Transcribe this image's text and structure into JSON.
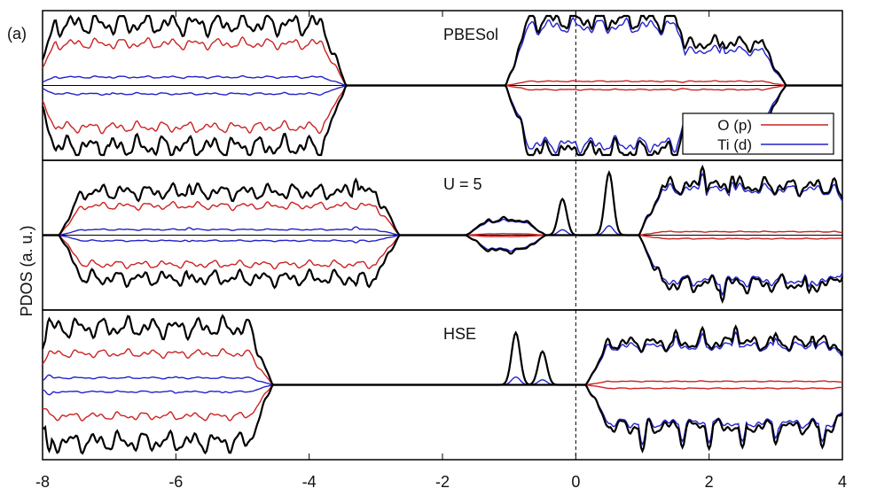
{
  "figure": {
    "panel_label": "(a)",
    "ylabel": "PDOS (a. u.)"
  },
  "chart_data": {
    "type": "line",
    "xlim": [
      -8,
      4
    ],
    "x_ticks": [
      -8,
      -6,
      -4,
      -2,
      0,
      2,
      4
    ],
    "x_tick_labels": [
      "-8",
      "-6",
      "-4",
      "-2",
      "0",
      "2",
      "4"
    ],
    "fermi_level_x": 0,
    "grid": false,
    "legend": {
      "placement": "top-right of top panel",
      "entries": [
        {
          "label": "O (p)",
          "color": "#cc2222"
        },
        {
          "label": "Ti (d)",
          "color": "#2222cc"
        }
      ]
    },
    "series_colors": {
      "total": "#000000",
      "O (p)": "#cc2222",
      "Ti (d)": "#2222cc"
    },
    "panels": [
      {
        "title": "PBESol",
        "ylim": [
          -1,
          1
        ],
        "zero_line": true,
        "blocks": [
          {
            "x": [
              -7.9,
              -3.7
            ],
            "total": 0.88,
            "O (p)": 0.6,
            "Ti (d)": 0.12
          },
          {
            "x": [
              -0.8,
              1.6
            ],
            "total": 0.95,
            "O (p)": 0.06,
            "Ti (d)": 0.85
          },
          {
            "x": [
              1.6,
              2.9
            ],
            "total": 0.6,
            "O (p)": 0.06,
            "Ti (d)": 0.5
          }
        ],
        "up_peaks": [
          [
            -7.0,
            0.83
          ],
          [
            -6.5,
            0.7
          ],
          [
            -4.3,
            0.72
          ],
          [
            0.7,
            0.92
          ],
          [
            1.1,
            0.84
          ],
          [
            2.2,
            0.62
          ]
        ],
        "down_peaks": [
          [
            -7.0,
            -0.87
          ],
          [
            -6.5,
            -0.72
          ],
          [
            -4.3,
            -0.76
          ],
          [
            0.7,
            -0.9
          ],
          [
            1.5,
            -0.8
          ],
          [
            2.2,
            -0.6
          ]
        ]
      },
      {
        "title": "U = 5",
        "ylim": [
          -1,
          1
        ],
        "zero_line": true,
        "blocks": [
          {
            "x": [
              -7.5,
              -2.9
            ],
            "total": 0.62,
            "O (p)": 0.42,
            "Ti (d)": 0.08
          },
          {
            "x": [
              -1.4,
              -0.7
            ],
            "total": 0.22,
            "O (p)": 0.02,
            "Ti (d)": 0.2
          },
          {
            "x": [
              1.2,
              4.0
            ],
            "total": 0.7,
            "O (p)": 0.05,
            "Ti (d)": 0.65
          }
        ],
        "up_peaks": [
          [
            -5.8,
            0.72
          ],
          [
            -3.3,
            0.8
          ],
          [
            -0.2,
            0.52
          ],
          [
            0.5,
            0.9
          ],
          [
            1.9,
            0.98
          ],
          [
            2.35,
            0.85
          ]
        ],
        "down_peaks": [
          [
            -5.8,
            -0.62
          ],
          [
            -3.3,
            -0.72
          ],
          [
            2.2,
            -0.95
          ],
          [
            2.8,
            -0.7
          ],
          [
            3.5,
            -0.82
          ]
        ]
      },
      {
        "title": "HSE",
        "ylim": [
          -1,
          1
        ],
        "zero_line": false,
        "blocks": [
          {
            "x": [
              -8.0,
              -4.8
            ],
            "total": 0.82,
            "O (p)": 0.45,
            "Ti (d)": 0.1
          },
          {
            "x": [
              0.4,
              4.0
            ],
            "total": 0.6,
            "O (p)": 0.05,
            "Ti (d)": 0.55
          }
        ],
        "up_peaks": [
          [
            -7.9,
            0.95
          ],
          [
            -6.0,
            0.78
          ],
          [
            -5.3,
            0.74
          ],
          [
            -0.9,
            0.75
          ],
          [
            -0.5,
            0.48
          ],
          [
            1.5,
            0.78
          ],
          [
            1.9,
            0.82
          ],
          [
            2.4,
            0.84
          ],
          [
            3.0,
            0.74
          ],
          [
            3.55,
            0.7
          ]
        ],
        "down_peaks": [
          [
            -7.9,
            -0.95
          ],
          [
            -6.0,
            -0.8
          ],
          [
            -5.3,
            -0.76
          ],
          [
            1.0,
            -0.95
          ],
          [
            1.6,
            -0.9
          ],
          [
            2.0,
            -0.92
          ],
          [
            2.5,
            -0.9
          ],
          [
            3.0,
            -0.85
          ],
          [
            3.7,
            -0.9
          ]
        ]
      }
    ]
  }
}
